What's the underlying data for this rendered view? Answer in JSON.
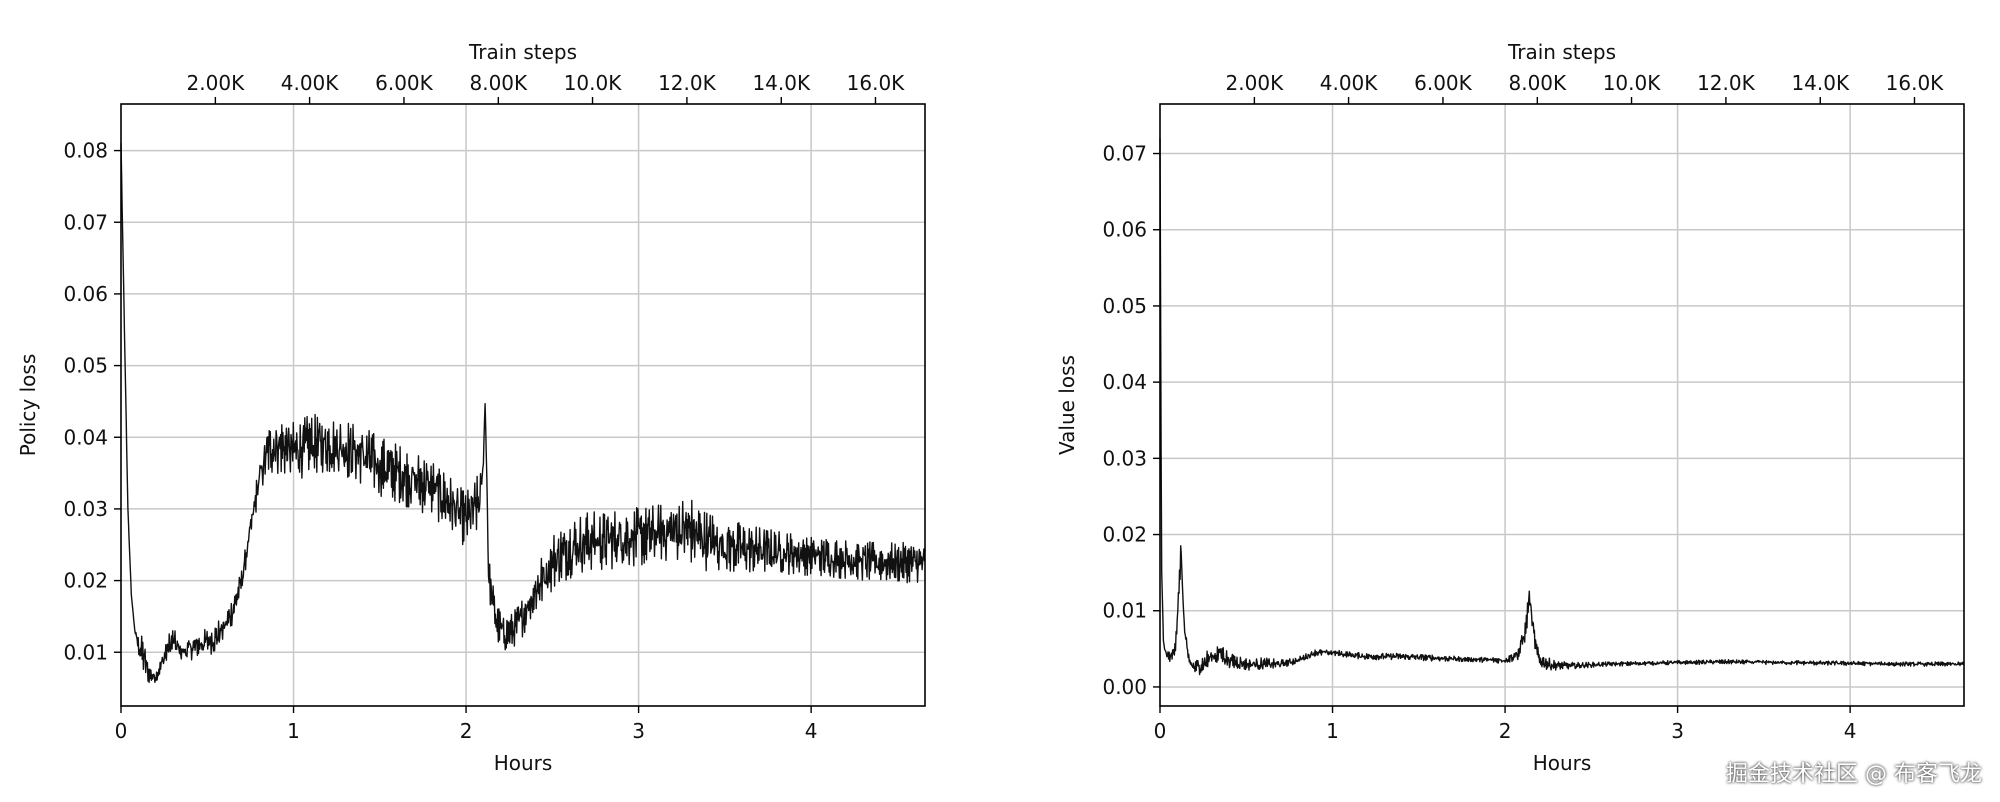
{
  "chart_data": [
    {
      "type": "line",
      "xlabel": "Hours",
      "ylabel": "Policy loss",
      "x2label": "Train steps",
      "xlim": [
        0,
        4.66
      ],
      "ylim": [
        0.0025,
        0.0865
      ],
      "xticks": [
        0,
        1,
        2,
        3,
        4
      ],
      "xtick_labels": [
        "0",
        "1",
        "2",
        "3",
        "4"
      ],
      "yticks": [
        0.01,
        0.02,
        0.03,
        0.04,
        0.05,
        0.06,
        0.07,
        0.08
      ],
      "ytick_labels": [
        "0.01",
        "0.02",
        "0.03",
        "0.04",
        "0.05",
        "0.06",
        "0.07",
        "0.08"
      ],
      "x2ticks_hours": [
        0.547,
        1.093,
        1.64,
        2.187,
        2.733,
        3.28,
        3.827,
        4.373
      ],
      "x2tick_labels": [
        "2.00K",
        "4.00K",
        "6.00K",
        "8.00K",
        "10.0K",
        "12.0K",
        "14.0K",
        "16.0K"
      ],
      "grid": true,
      "series": [
        {
          "x": [
            0,
            0.02,
            0.04,
            0.06,
            0.08,
            0.1,
            0.13,
            0.16,
            0.2,
            0.23,
            0.26,
            0.3,
            0.33,
            0.36,
            0.4,
            0.45,
            0.5,
            0.55,
            0.6,
            0.65,
            0.7,
            0.75,
            0.8,
            0.85,
            0.9,
            0.95,
            1.0,
            1.05,
            1.1,
            1.2,
            1.3,
            1.4,
            1.5,
            1.6,
            1.7,
            1.8,
            1.9,
            1.95,
            2.0,
            2.05,
            2.08,
            2.1,
            2.11,
            2.12,
            2.13,
            2.15,
            2.18,
            2.22,
            2.27,
            2.33,
            2.4,
            2.5,
            2.6,
            2.7,
            2.8,
            2.9,
            3.0,
            3.1,
            3.2,
            3.3,
            3.4,
            3.5,
            3.6,
            3.8,
            4.0,
            4.2,
            4.4,
            4.66
          ],
          "y": [
            0.081,
            0.055,
            0.03,
            0.018,
            0.013,
            0.011,
            0.0095,
            0.007,
            0.0065,
            0.008,
            0.01,
            0.0115,
            0.0105,
            0.01,
            0.0105,
            0.011,
            0.0115,
            0.012,
            0.0135,
            0.016,
            0.02,
            0.027,
            0.034,
            0.038,
            0.039,
            0.0385,
            0.038,
            0.0385,
            0.039,
            0.039,
            0.0385,
            0.0375,
            0.036,
            0.035,
            0.034,
            0.033,
            0.031,
            0.0295,
            0.0285,
            0.03,
            0.031,
            0.036,
            0.045,
            0.035,
            0.021,
            0.0175,
            0.014,
            0.0125,
            0.013,
            0.015,
            0.0185,
            0.0225,
            0.0245,
            0.0255,
            0.0255,
            0.026,
            0.026,
            0.0265,
            0.027,
            0.027,
            0.0255,
            0.025,
            0.0245,
            0.024,
            0.0235,
            0.023,
            0.0225,
            0.0225
          ],
          "noise_amplitude": [
            0,
            0,
            0,
            0,
            0,
            0.001,
            0.002,
            0.001,
            0.0005,
            0.0008,
            0.0015,
            0.0015,
            0.0012,
            0.0012,
            0.0012,
            0.0012,
            0.0014,
            0.0015,
            0.0015,
            0.0014,
            0.0012,
            0.0012,
            0.0018,
            0.0025,
            0.003,
            0.003,
            0.003,
            0.003,
            0.003,
            0.003,
            0.003,
            0.003,
            0.003,
            0.003,
            0.003,
            0.003,
            0.0028,
            0.0028,
            0.0028,
            0.003,
            0.003,
            0,
            0,
            0,
            0.002,
            0.002,
            0.002,
            0.0018,
            0.0018,
            0.002,
            0.0025,
            0.003,
            0.003,
            0.003,
            0.003,
            0.003,
            0.003,
            0.003,
            0.003,
            0.0035,
            0.003,
            0.003,
            0.0025,
            0.0022,
            0.002,
            0.002,
            0.002,
            0.002
          ]
        }
      ]
    },
    {
      "type": "line",
      "xlabel": "Hours",
      "ylabel": "Value loss",
      "x2label": "Train steps",
      "xlim": [
        0,
        4.66
      ],
      "ylim": [
        -0.0025,
        0.0765
      ],
      "xticks": [
        0,
        1,
        2,
        3,
        4
      ],
      "xtick_labels": [
        "0",
        "1",
        "2",
        "3",
        "4"
      ],
      "yticks": [
        0.0,
        0.01,
        0.02,
        0.03,
        0.04,
        0.05,
        0.06,
        0.07
      ],
      "ytick_labels": [
        "0.00",
        "0.01",
        "0.02",
        "0.03",
        "0.04",
        "0.05",
        "0.06",
        "0.07"
      ],
      "x2ticks_hours": [
        0.547,
        1.093,
        1.64,
        2.187,
        2.733,
        3.28,
        3.827,
        4.373
      ],
      "x2tick_labels": [
        "2.00K",
        "4.00K",
        "6.00K",
        "8.00K",
        "10.0K",
        "12.0K",
        "14.0K",
        "16.0K"
      ],
      "grid": true,
      "series": [
        {
          "x": [
            0,
            0.005,
            0.01,
            0.02,
            0.03,
            0.05,
            0.07,
            0.09,
            0.11,
            0.12,
            0.13,
            0.14,
            0.16,
            0.18,
            0.2,
            0.25,
            0.3,
            0.35,
            0.4,
            0.5,
            0.6,
            0.7,
            0.8,
            0.9,
            1.0,
            1.1,
            1.2,
            1.4,
            1.6,
            1.8,
            2.0,
            2.08,
            2.12,
            2.14,
            2.16,
            2.18,
            2.2,
            2.25,
            2.3,
            2.4,
            2.6,
            3.0,
            3.3,
            3.6,
            4.0,
            4.3,
            4.66
          ],
          "y": [
            0.072,
            0.04,
            0.015,
            0.006,
            0.0045,
            0.004,
            0.004,
            0.006,
            0.012,
            0.018,
            0.014,
            0.008,
            0.004,
            0.003,
            0.0025,
            0.003,
            0.004,
            0.0045,
            0.0035,
            0.003,
            0.003,
            0.003,
            0.0035,
            0.0045,
            0.0045,
            0.0042,
            0.004,
            0.004,
            0.0038,
            0.0036,
            0.0035,
            0.0045,
            0.0075,
            0.012,
            0.008,
            0.005,
            0.0035,
            0.003,
            0.0028,
            0.0028,
            0.003,
            0.0032,
            0.0033,
            0.0032,
            0.0031,
            0.003,
            0.003
          ],
          "noise_amplitude": [
            0,
            0,
            0,
            0,
            0.0005,
            0.0005,
            0.0005,
            0.001,
            0.0015,
            0.0015,
            0.0015,
            0.001,
            0.0008,
            0.0006,
            0.0006,
            0.001,
            0.001,
            0.001,
            0.0008,
            0.0006,
            0.0006,
            0.0004,
            0.0003,
            0.0003,
            0.0003,
            0.0003,
            0.0003,
            0.0003,
            0.0003,
            0.0002,
            0.0003,
            0.0008,
            0.001,
            0.0012,
            0.001,
            0.0008,
            0.0006,
            0.0006,
            0.0004,
            0.0003,
            0.0002,
            0.0002,
            0.0002,
            0.0002,
            0.0002,
            0.0002,
            0.0002
          ]
        }
      ]
    }
  ],
  "watermark": "掘金技术社区 @ 布客飞龙"
}
